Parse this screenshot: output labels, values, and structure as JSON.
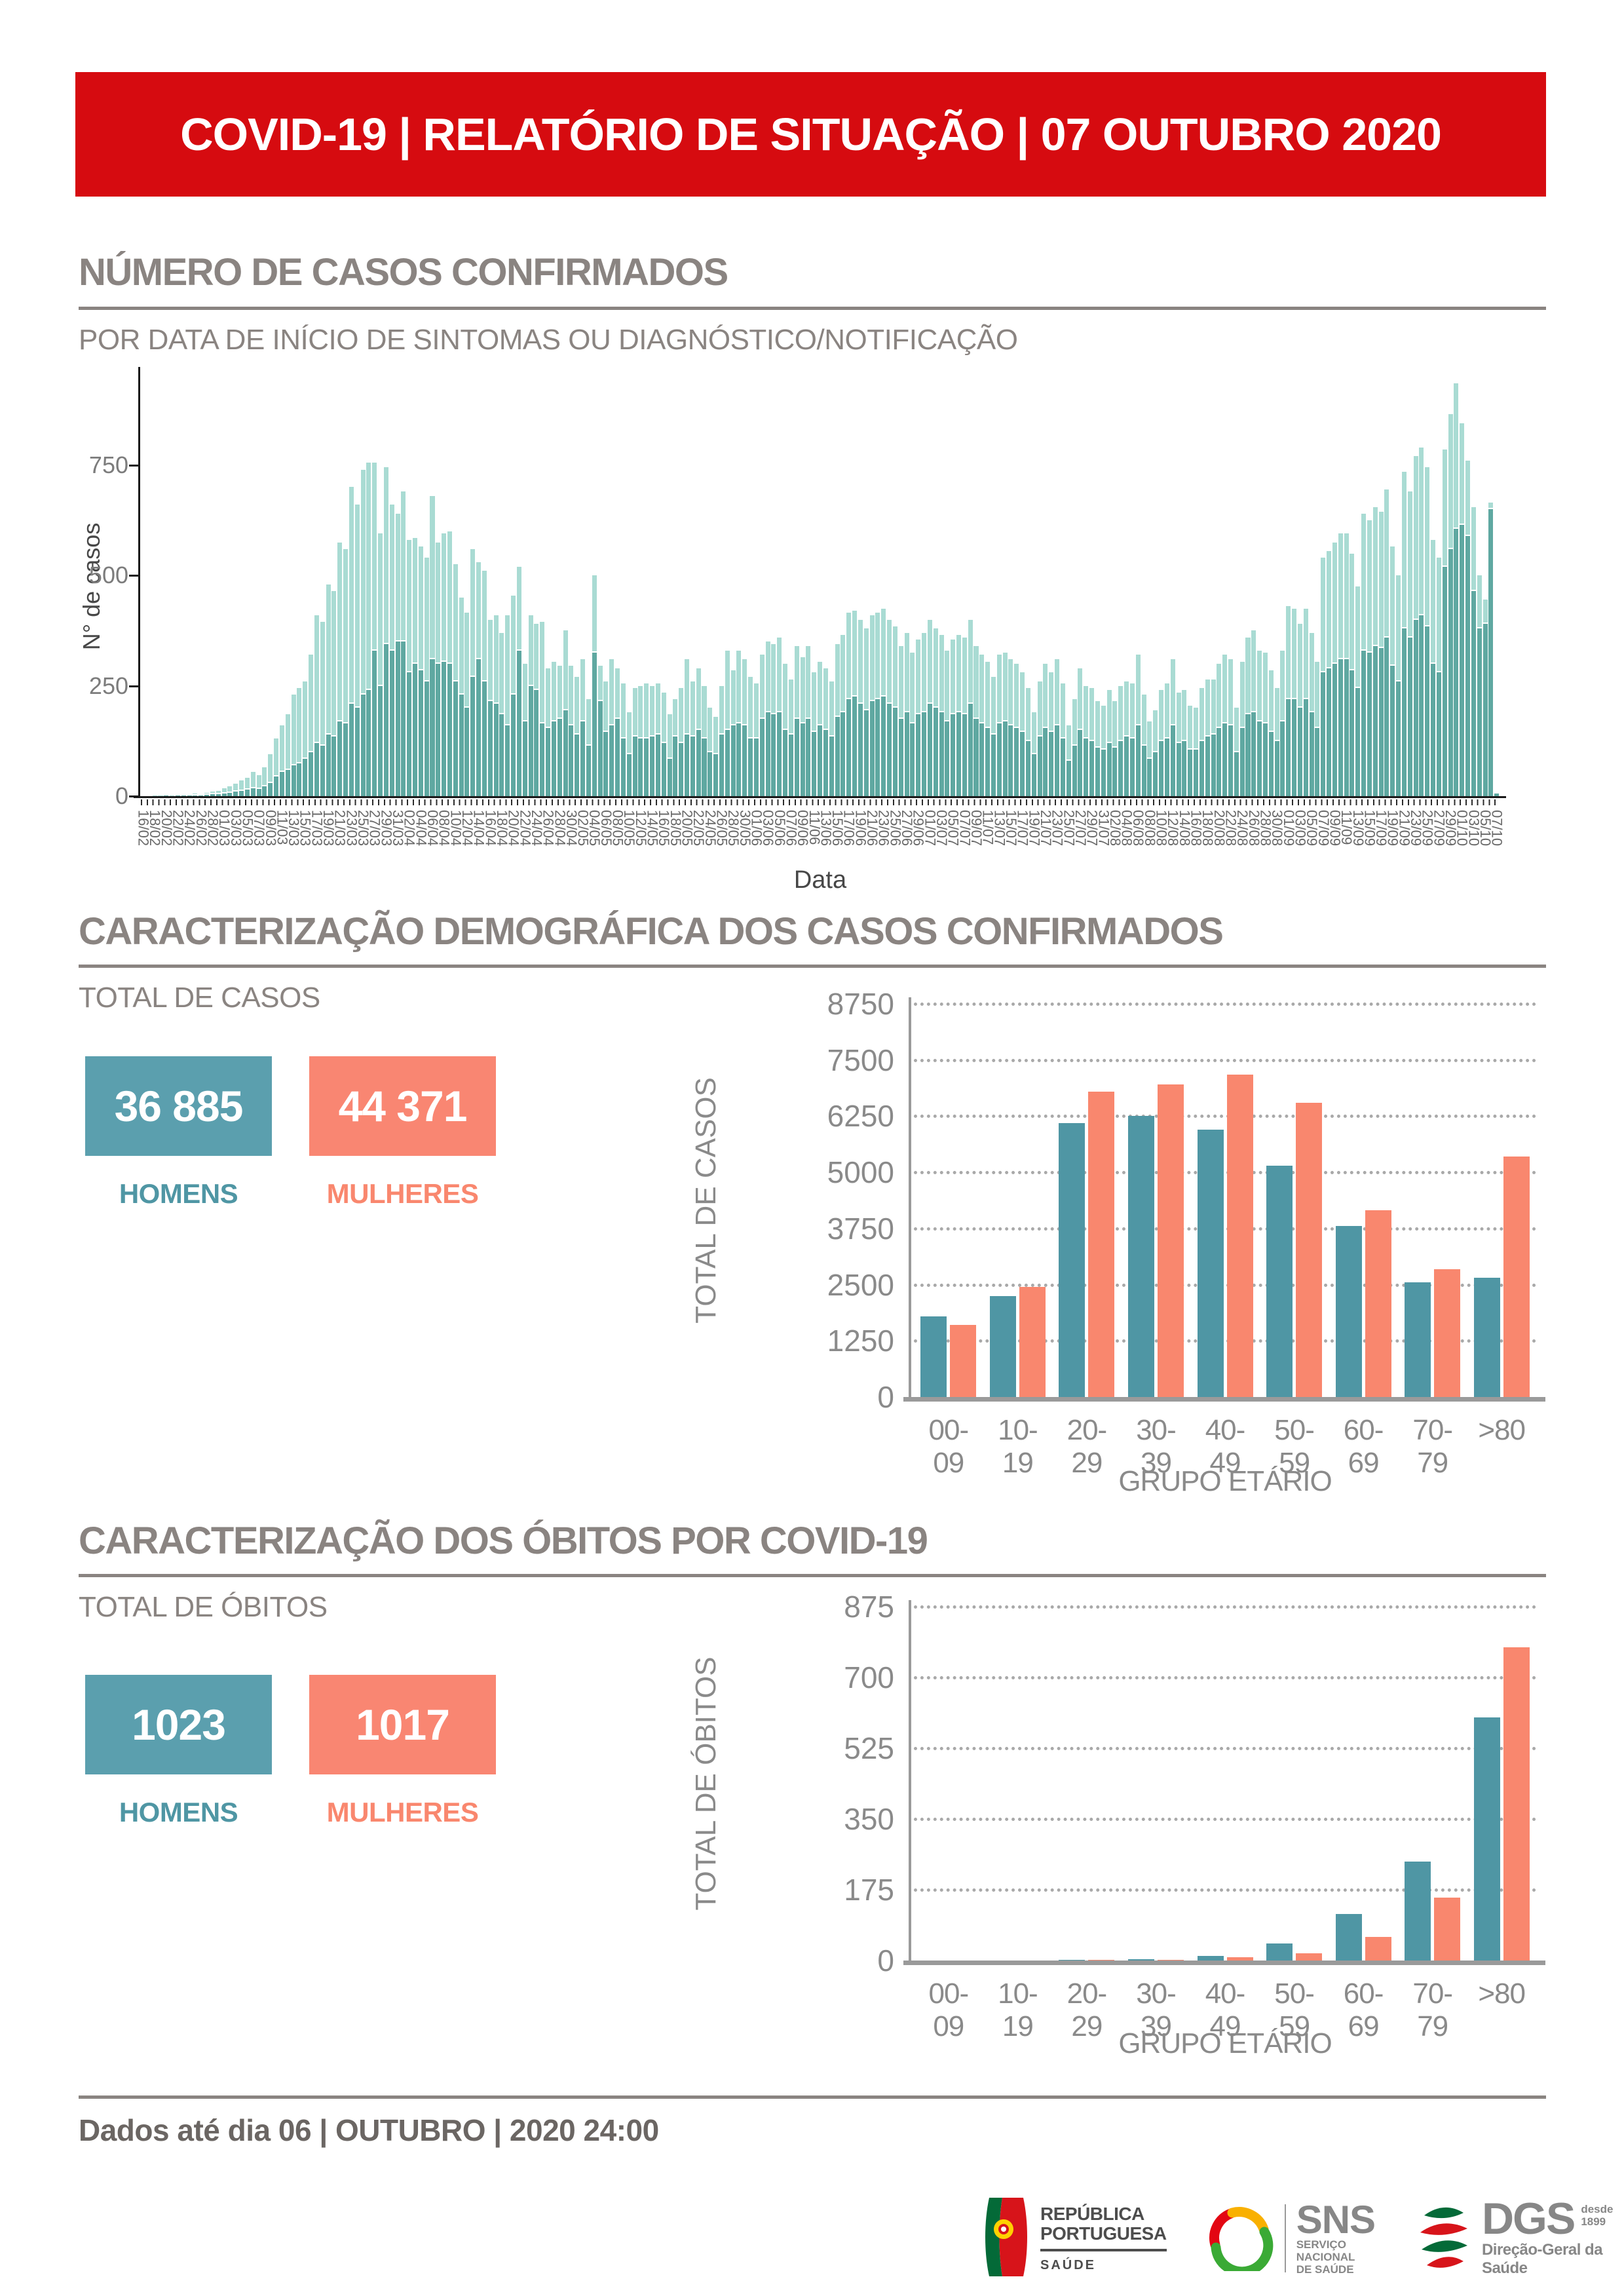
{
  "banner": {
    "title": "COVID-19 | RELATÓRIO DE SITUAÇÃO | 07 OUTUBRO 2020"
  },
  "section_cases": {
    "title": "NÚMERO DE CASOS CONFIRMADOS",
    "subtitle": "POR DATA DE INÍCIO DE SINTOMAS OU DIAGNÓSTICO/NOTIFICAÇÃO"
  },
  "section_demography": {
    "title": "CARACTERIZAÇÃO DEMOGRÁFICA DOS CASOS CONFIRMADOS",
    "subtitle": "TOTAL DE CASOS",
    "stats": {
      "men_value": "36 885",
      "men_label": "HOMENS",
      "women_value": "44 371",
      "women_label": "MULHERES"
    }
  },
  "section_deaths": {
    "title": "CARACTERIZAÇÃO DOS ÓBITOS POR COVID-19",
    "subtitle": "TOTAL DE ÓBITOS",
    "stats": {
      "men_value": "1023",
      "men_label": "HOMENS",
      "women_value": "1017",
      "women_label": "MULHERES"
    }
  },
  "footer": {
    "note": "Dados até dia 06 | OUTUBRO | 2020 24:00",
    "logos": {
      "republica": {
        "line1": "REPÚBLICA",
        "line2": "PORTUGUESA",
        "sub": "SAÚDE"
      },
      "sns": {
        "abbr": "SNS",
        "sub1": "SERVIÇO NACIONAL",
        "sub2": "DE SAÚDE"
      },
      "dgs": {
        "abbr": "DGS",
        "since1": "desde",
        "since2": "1899",
        "sub": "Direção-Geral da Saúde"
      }
    }
  },
  "colors": {
    "red": "#d60b10",
    "title_gray": "#8a8481",
    "bar_light": "#a9dbd3",
    "bar_dark": "#5fa8a1",
    "teal": "#4f96a4",
    "salmon": "#f9876e",
    "box_teal": "#5b9fae",
    "box_salmon": "#f98672",
    "axis_gray": "#9a9a9a"
  },
  "chart_data": [
    {
      "type": "bar",
      "title": "NÚMERO DE CASOS CONFIRMADOS",
      "subtitle": "POR DATA DE INÍCIO DE SINTOMAS OU DIAGNÓSTICO/NOTIFICAÇÃO",
      "xlabel": "Data",
      "ylabel": "N° de casos",
      "ylim": [
        0,
        950
      ],
      "yticks": [
        0,
        250,
        500,
        750
      ],
      "grid": false,
      "legend_position": "none",
      "x_start": "16/02",
      "x_end": "07/10",
      "x_tick_labels": [
        "16/02",
        "18/02",
        "20/02",
        "22/02",
        "24/02",
        "26/02",
        "28/02",
        "01/03",
        "03/03",
        "05/03",
        "07/03",
        "09/03",
        "11/03",
        "13/03",
        "15/03",
        "17/03",
        "19/03",
        "21/03",
        "23/03",
        "25/03",
        "27/03",
        "29/03",
        "31/03",
        "02/04",
        "04/04",
        "06/04",
        "08/04",
        "10/04",
        "12/04",
        "14/04",
        "16/04",
        "18/04",
        "20/04",
        "22/04",
        "24/04",
        "26/04",
        "28/04",
        "30/04",
        "02/05",
        "04/05",
        "06/05",
        "08/05",
        "10/05",
        "12/05",
        "14/05",
        "16/05",
        "18/05",
        "20/05",
        "22/05",
        "24/05",
        "26/05",
        "28/05",
        "30/05",
        "01/06",
        "03/06",
        "05/06",
        "07/06",
        "09/06",
        "11/06",
        "13/06",
        "15/06",
        "17/06",
        "19/06",
        "21/06",
        "23/06",
        "25/06",
        "27/06",
        "29/06",
        "01/07",
        "03/07",
        "05/07",
        "07/07",
        "09/07",
        "11/07",
        "13/07",
        "15/07",
        "17/07",
        "19/07",
        "21/07",
        "23/07",
        "25/07",
        "27/07",
        "29/07",
        "31/07",
        "02/08",
        "04/08",
        "06/08",
        "08/08",
        "10/08",
        "12/08",
        "14/08",
        "16/08",
        "18/08",
        "20/08",
        "22/08",
        "24/08",
        "26/08",
        "28/08",
        "30/08",
        "01/09",
        "03/09",
        "05/09",
        "07/09",
        "09/09",
        "11/09",
        "13/09",
        "15/09",
        "17/09",
        "19/09",
        "21/09",
        "23/09",
        "25/09",
        "27/09",
        "29/09",
        "01/10",
        "03/10",
        "05/10",
        "07/10"
      ],
      "series": [
        {
          "name": "casos (série clara)",
          "color": "#a9dbd3",
          "values": [
            0,
            0,
            1,
            1,
            2,
            1,
            3,
            2,
            4,
            6,
            5,
            8,
            10,
            12,
            18,
            22,
            28,
            35,
            42,
            55,
            48,
            65,
            95,
            130,
            160,
            185,
            230,
            245,
            260,
            320,
            410,
            395,
            480,
            465,
            575,
            560,
            700,
            660,
            740,
            755,
            755,
            595,
            745,
            660,
            640,
            690,
            580,
            585,
            565,
            540,
            680,
            575,
            595,
            600,
            525,
            450,
            415,
            560,
            530,
            510,
            400,
            410,
            370,
            410,
            455,
            520,
            300,
            410,
            390,
            395,
            290,
            305,
            295,
            375,
            295,
            270,
            310,
            220,
            500,
            295,
            260,
            310,
            290,
            255,
            190,
            245,
            250,
            255,
            250,
            255,
            235,
            185,
            220,
            245,
            310,
            260,
            290,
            250,
            200,
            180,
            250,
            330,
            285,
            330,
            310,
            270,
            255,
            320,
            350,
            345,
            360,
            300,
            265,
            340,
            315,
            340,
            280,
            305,
            290,
            260,
            345,
            365,
            415,
            420,
            400,
            380,
            410,
            415,
            425,
            400,
            385,
            340,
            370,
            325,
            355,
            370,
            400,
            380,
            365,
            330,
            355,
            365,
            360,
            400,
            340,
            320,
            305,
            270,
            320,
            325,
            310,
            300,
            280,
            245,
            190,
            260,
            300,
            280,
            310,
            255,
            160,
            220,
            290,
            250,
            245,
            215,
            205,
            240,
            215,
            250,
            260,
            255,
            320,
            230,
            170,
            195,
            240,
            255,
            310,
            235,
            240,
            205,
            200,
            245,
            265,
            265,
            300,
            320,
            310,
            200,
            305,
            360,
            375,
            330,
            325,
            285,
            245,
            330,
            430,
            425,
            390,
            425,
            370,
            305,
            540,
            555,
            575,
            595,
            595,
            550,
            475,
            640,
            625,
            655,
            645,
            695,
            565,
            500,
            735,
            690,
            770,
            790,
            745,
            580,
            540,
            785,
            865,
            935,
            845,
            760,
            655,
            500,
            445,
            665,
            8
          ]
        },
        {
          "name": "casos (série escura, sobreposição)",
          "color": "#5fa8a1",
          "values": [
            0,
            0,
            0,
            0,
            1,
            0,
            1,
            1,
            2,
            2,
            2,
            3,
            4,
            5,
            6,
            8,
            10,
            12,
            15,
            18,
            16,
            22,
            30,
            45,
            55,
            60,
            70,
            75,
            85,
            100,
            120,
            115,
            140,
            135,
            170,
            165,
            210,
            200,
            230,
            240,
            330,
            250,
            345,
            330,
            350,
            350,
            280,
            300,
            285,
            260,
            310,
            300,
            305,
            300,
            260,
            230,
            200,
            270,
            310,
            260,
            215,
            210,
            185,
            160,
            230,
            330,
            170,
            250,
            240,
            165,
            155,
            170,
            175,
            195,
            160,
            140,
            170,
            115,
            325,
            215,
            145,
            160,
            175,
            130,
            95,
            135,
            130,
            130,
            135,
            140,
            120,
            85,
            135,
            120,
            140,
            135,
            150,
            130,
            100,
            95,
            140,
            150,
            160,
            165,
            160,
            130,
            130,
            175,
            190,
            185,
            190,
            150,
            140,
            175,
            165,
            175,
            145,
            160,
            150,
            135,
            180,
            190,
            220,
            225,
            210,
            195,
            215,
            220,
            225,
            210,
            200,
            175,
            190,
            165,
            185,
            190,
            210,
            200,
            190,
            170,
            185,
            190,
            185,
            210,
            175,
            165,
            155,
            140,
            165,
            170,
            160,
            155,
            145,
            125,
            95,
            135,
            155,
            145,
            160,
            130,
            80,
            115,
            150,
            130,
            125,
            110,
            105,
            120,
            110,
            125,
            135,
            130,
            160,
            115,
            85,
            100,
            125,
            130,
            160,
            120,
            125,
            105,
            105,
            125,
            135,
            140,
            155,
            165,
            160,
            100,
            155,
            185,
            190,
            170,
            165,
            145,
            125,
            170,
            220,
            220,
            200,
            220,
            190,
            155,
            280,
            290,
            300,
            310,
            310,
            285,
            245,
            330,
            325,
            340,
            335,
            360,
            295,
            260,
            380,
            360,
            400,
            410,
            385,
            300,
            280,
            520,
            560,
            605,
            615,
            590,
            465,
            380,
            390,
            650,
            6
          ]
        }
      ]
    },
    {
      "type": "bar",
      "title": "TOTAL DE CASOS",
      "xlabel": "GRUPO ETÁRIO",
      "ylabel": "TOTAL DE CASOS",
      "categories": [
        "00-09",
        "10-19",
        "20-29",
        "30-39",
        "40-49",
        "50-59",
        "60-69",
        "70-79",
        ">80"
      ],
      "ylim": [
        0,
        8750
      ],
      "yticks": [
        0,
        1250,
        2500,
        3750,
        5000,
        6250,
        7500,
        8750
      ],
      "grid": "dotted-horizontal",
      "legend_position": "none",
      "series": [
        {
          "name": "HOMENS",
          "color": "#4f96a4",
          "values": [
            1800,
            2250,
            6100,
            6250,
            5950,
            5150,
            3800,
            2550,
            2650
          ]
        },
        {
          "name": "MULHERES",
          "color": "#f9876e",
          "values": [
            1600,
            2450,
            6800,
            6950,
            7180,
            6550,
            4150,
            2850,
            5350
          ]
        }
      ]
    },
    {
      "type": "bar",
      "title": "TOTAL DE ÓBITOS",
      "xlabel": "GRUPO ETÁRIO",
      "ylabel": "TOTAL DE ÓBITOS",
      "categories": [
        "00-09",
        "10-19",
        "20-29",
        "30-39",
        "40-49",
        "50-59",
        "60-69",
        "70-79",
        ">80"
      ],
      "ylim": [
        0,
        875
      ],
      "yticks": [
        0,
        175,
        350,
        525,
        700,
        875
      ],
      "grid": "dotted-horizontal",
      "legend_position": "none",
      "series": [
        {
          "name": "HOMENS",
          "color": "#4f96a4",
          "values": [
            0,
            0,
            2,
            4,
            12,
            43,
            115,
            245,
            602
          ]
        },
        {
          "name": "MULHERES",
          "color": "#f9876e",
          "values": [
            0,
            0,
            1,
            2,
            8,
            18,
            58,
            155,
            775
          ]
        }
      ]
    }
  ]
}
